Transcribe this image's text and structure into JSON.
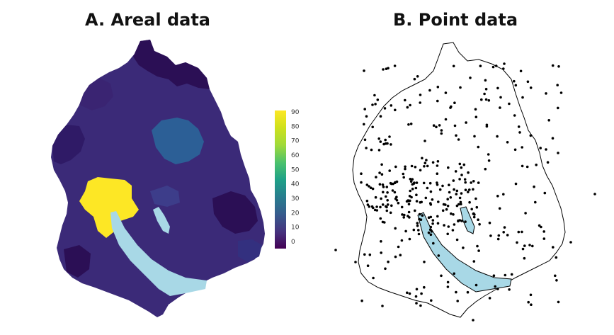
{
  "panels": {
    "areal": {
      "title": "A. Areal data"
    },
    "point": {
      "title": "B. Point data"
    }
  },
  "legend": {
    "ticks": [
      "90",
      "80",
      "70",
      "60",
      "50",
      "40",
      "30",
      "20",
      "10",
      "0"
    ],
    "min": 0,
    "max": 90
  },
  "colors": {
    "base_region": "#3b2a78",
    "dark_region": "#2b0f55",
    "mid_region": "#352a84",
    "high_region": "#2c5f96",
    "max_region": "#fde725",
    "lake": "#a8d8e6",
    "point": "#000000",
    "outline": "#000000"
  }
}
